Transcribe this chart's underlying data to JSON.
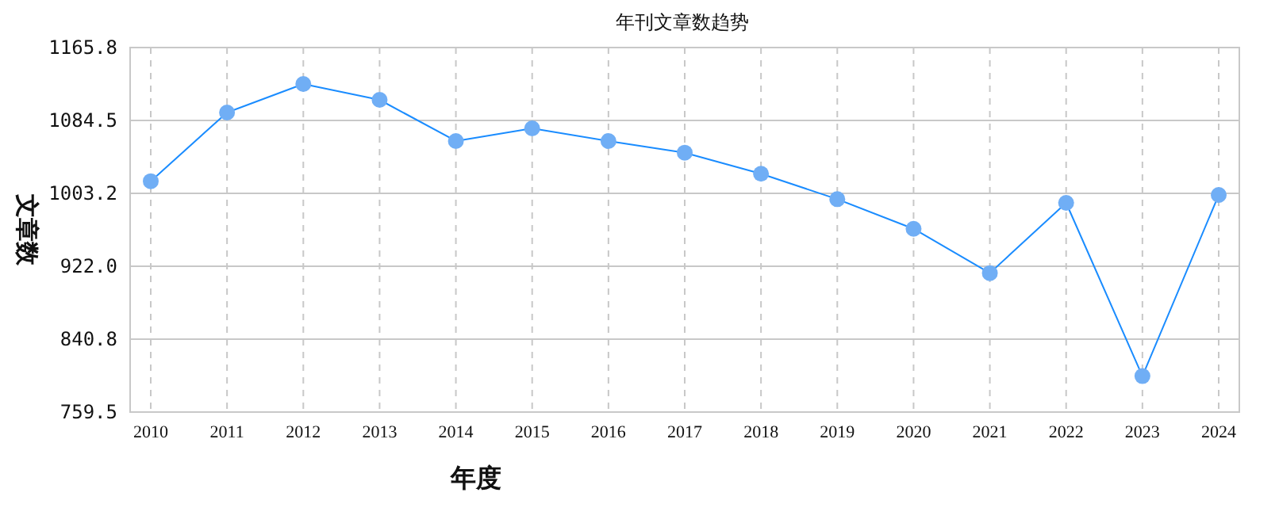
{
  "chart_data": {
    "type": "line",
    "title": "年刊文章数趋势",
    "xlabel": "年度",
    "ylabel": "文章数",
    "categories": [
      "2010",
      "2011",
      "2012",
      "2013",
      "2014",
      "2015",
      "2016",
      "2017",
      "2018",
      "2019",
      "2020",
      "2021",
      "2022",
      "2023",
      "2024"
    ],
    "series": [
      {
        "color": "#1a8cff",
        "values": [
          1016.8,
          1093.4,
          1125.2,
          1107.5,
          1061.6,
          1075.7,
          1061.6,
          1048.6,
          1025.1,
          996.8,
          963.8,
          914.4,
          992.7,
          799.6,
          1001.5
        ]
      }
    ],
    "ylim": [
      759.5,
      1165.8
    ],
    "yticks": [
      {
        "value": 759.5,
        "label": "759.5"
      },
      {
        "value": 840.8,
        "label": "840.8"
      },
      {
        "value": 922.0,
        "label": "922.0"
      },
      {
        "value": 1003.2,
        "label": "1003.2"
      },
      {
        "value": 1084.5,
        "label": "1084.5"
      },
      {
        "value": 1165.8,
        "label": "1165.8"
      }
    ],
    "grid": true,
    "marker": "circle",
    "line_style": "solid"
  }
}
